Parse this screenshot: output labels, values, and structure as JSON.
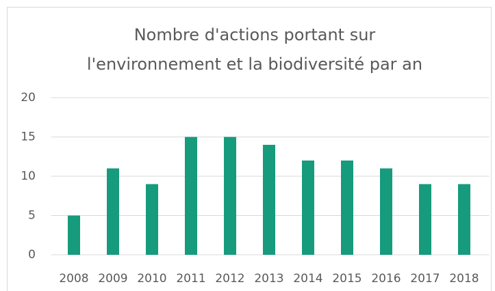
{
  "chart_data": {
    "type": "bar",
    "title": [
      "Nombre d'actions portant sur",
      "l'environnement et la biodiversité par an"
    ],
    "categories": [
      "2008",
      "2009",
      "2010",
      "2011",
      "2012",
      "2013",
      "2014",
      "2015",
      "2016",
      "2017",
      "2018"
    ],
    "values": [
      5,
      11,
      9,
      15,
      15,
      14,
      12,
      12,
      11,
      9,
      9
    ],
    "color": "#169b7c",
    "ylim": [
      0,
      20
    ],
    "yticks": [
      0,
      5,
      10,
      15,
      20
    ],
    "grid": true
  }
}
